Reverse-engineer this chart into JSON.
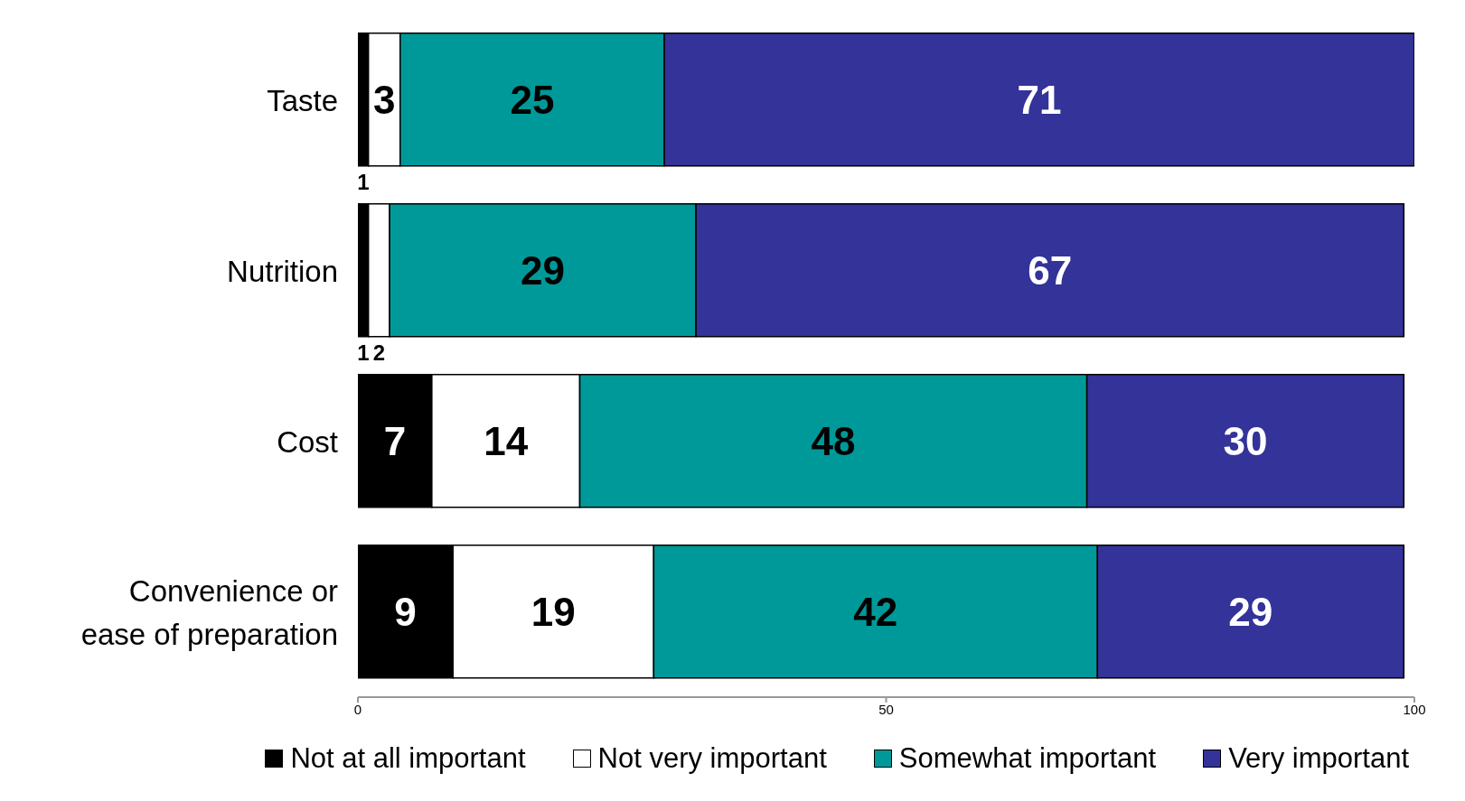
{
  "chart_data": {
    "type": "bar",
    "orientation": "horizontal",
    "stacked": true,
    "categories": [
      "Taste",
      "Nutrition",
      "Cost",
      "Convenience or ease of preparation"
    ],
    "series": [
      {
        "name": "Not at all important",
        "color": "#000000",
        "values": [
          1,
          1,
          7,
          9
        ]
      },
      {
        "name": "Not very important",
        "color": "#ffffff",
        "values": [
          3,
          2,
          14,
          19
        ]
      },
      {
        "name": "Somewhat important",
        "color": "#009999",
        "values": [
          25,
          29,
          48,
          42
        ]
      },
      {
        "name": "Very important",
        "color": "#333399",
        "values": [
          71,
          67,
          30,
          29
        ]
      }
    ],
    "xlim": [
      0,
      100
    ],
    "xticks": [
      0,
      50,
      100
    ],
    "data_labels": true,
    "legend": "bottom",
    "grid": false
  }
}
